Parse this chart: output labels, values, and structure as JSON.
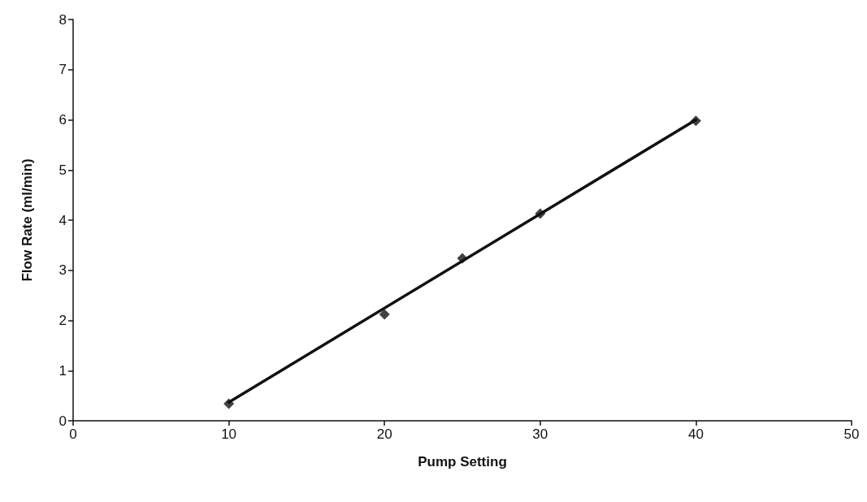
{
  "chart_data": {
    "type": "scatter",
    "xlabel": "Pump Setting",
    "ylabel": "Flow Rate (ml/min)",
    "xlim": [
      0,
      50
    ],
    "xticks": [
      0,
      10,
      20,
      30,
      40,
      50
    ],
    "ylim": [
      0,
      8
    ],
    "yticks": [
      0,
      1,
      2,
      3,
      4,
      5,
      6,
      7,
      8
    ],
    "grid": false,
    "marker": "diamond",
    "series": [
      {
        "color": "#111111",
        "x": [
          10,
          20,
          25,
          30,
          40
        ],
        "values": [
          0.34,
          2.12,
          3.24,
          4.13,
          5.98
        ]
      },
      {
        "type": "line",
        "color": "#111111",
        "x": [
          10,
          40
        ],
        "values": [
          0.37,
          6.0
        ],
        "marker": "none",
        "line_style": "solid"
      }
    ]
  }
}
